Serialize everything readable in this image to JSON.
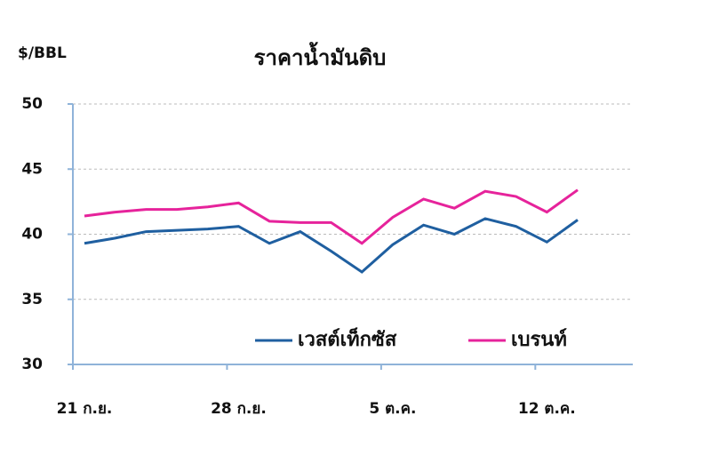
{
  "chart_data": {
    "type": "line",
    "title": "ราคาน้ำมันดิบ",
    "y_label": "$/BBL",
    "categories": [
      "21 ก.ย.",
      null,
      null,
      null,
      null,
      "28 ก.ย.",
      null,
      null,
      null,
      null,
      "5 ต.ค.",
      null,
      null,
      null,
      null,
      "12 ต.ค.",
      null
    ],
    "series": [
      {
        "name": "เวสต์เท็กซัส",
        "color": "#1f5fa0",
        "values": [
          39.3,
          39.7,
          40.2,
          40.3,
          40.4,
          40.6,
          39.3,
          40.2,
          38.7,
          37.1,
          39.2,
          40.7,
          40.0,
          41.2,
          40.6,
          39.4,
          41.1
        ]
      },
      {
        "name": "เบรนท์",
        "color": "#e6239b",
        "values": [
          41.4,
          41.7,
          41.9,
          41.9,
          42.1,
          42.4,
          41.0,
          40.9,
          40.9,
          39.3,
          41.3,
          42.7,
          42.0,
          43.3,
          42.9,
          41.7,
          43.4
        ]
      }
    ],
    "ylim": [
      30,
      50
    ],
    "yticks": [
      30,
      35,
      40,
      45,
      50
    ],
    "grid": true
  }
}
